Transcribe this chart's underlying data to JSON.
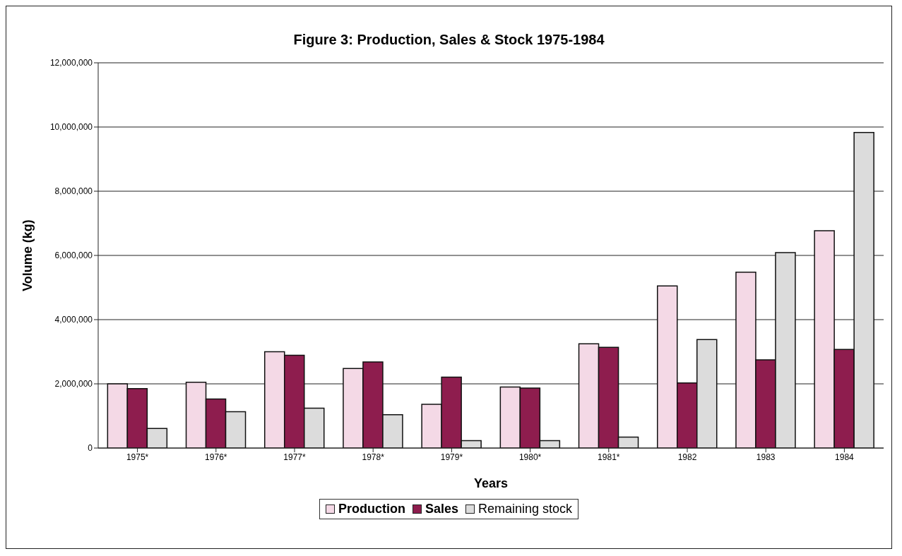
{
  "chart_data": {
    "type": "bar",
    "title": "Figure 3: Production, Sales & Stock 1975-1984",
    "xlabel": "Years",
    "ylabel": "Volume (kg)",
    "categories": [
      "1975*",
      "1976*",
      "1977*",
      "1978*",
      "1979*",
      "1980*",
      "1981*",
      "1982",
      "1983",
      "1984"
    ],
    "series": [
      {
        "name": "Production",
        "color": "#f4d9e6",
        "values": [
          2000000,
          2050000,
          3000000,
          2480000,
          1360000,
          1900000,
          3250000,
          5050000,
          5480000,
          6770000
        ]
      },
      {
        "name": "Sales",
        "color": "#8e1d4e",
        "values": [
          1850000,
          1530000,
          2890000,
          2680000,
          2210000,
          1870000,
          3140000,
          2030000,
          2750000,
          3070000
        ]
      },
      {
        "name": "Remaining stock",
        "color": "#dcdcdc",
        "values": [
          610000,
          1130000,
          1240000,
          1040000,
          230000,
          230000,
          340000,
          3380000,
          6090000,
          9830000
        ]
      }
    ],
    "ylim": [
      0,
      12000000
    ],
    "yticks": [
      0,
      {
        "value": 2000000,
        "label": "2,000,000"
      },
      {
        "value": 4000000,
        "label": "4,000,000"
      },
      {
        "value": 6000000,
        "label": "6,000,000"
      },
      {
        "value": 8000000,
        "label": "8,000,000"
      },
      {
        "value": 10000000,
        "label": "10,000,000"
      },
      {
        "value": 12000000,
        "label": "12,000,000"
      }
    ],
    "grid": "y",
    "legend": "bottom"
  }
}
